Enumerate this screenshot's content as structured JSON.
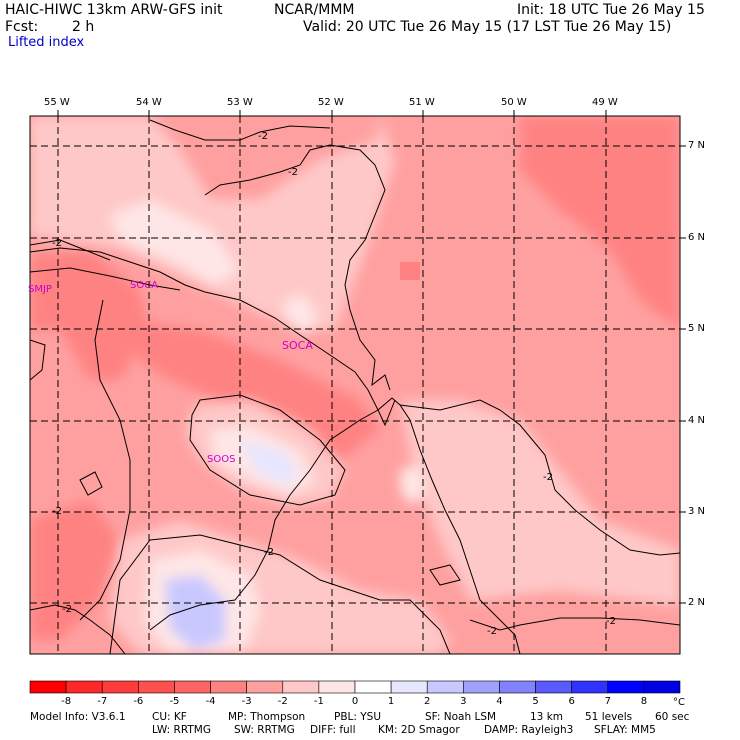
{
  "header": {
    "title_left": "HAIC-HIWC 13km ARW-GFS init",
    "title_center": "NCAR/MMM",
    "init": "Init: 18 UTC Tue 26 May 15",
    "fcst_label": "Fcst:",
    "fcst_value": "2 h",
    "valid": "Valid: 20 UTC Tue 26 May 15 (17 LST Tue 26 May 15)",
    "field_name": "Lifted index"
  },
  "map": {
    "lon_labels": [
      "55 W",
      "54 W",
      "53 W",
      "52 W",
      "51 W",
      "50 W",
      "49 W"
    ],
    "lat_labels": [
      "7 N",
      "6 N",
      "5 N",
      "4 N",
      "3 N",
      "2 N"
    ],
    "stations": [
      "SMJP",
      "SOCA",
      "SOCA",
      "SOOS"
    ],
    "contour_labels": [
      "-2",
      "-2",
      "-2",
      "-2",
      "-2",
      "-2",
      "-2",
      "-2",
      "-2"
    ]
  },
  "colorbar": {
    "levels": [
      "-8",
      "-7",
      "-6",
      "-5",
      "-4",
      "-3",
      "-2",
      "-1",
      "0",
      "1",
      "2",
      "3",
      "4",
      "5",
      "6",
      "7",
      "8"
    ],
    "unit": "°C",
    "colors": [
      "#ff0000",
      "#ff2828",
      "#ff3c3c",
      "#ff5050",
      "#ff6464",
      "#ff8282",
      "#ffa0a0",
      "#ffc8c8",
      "#ffe6e6",
      "#ffffff",
      "#e6e6ff",
      "#c8c8ff",
      "#a0a0ff",
      "#8282ff",
      "#5a5aff",
      "#3232ff",
      "#0000ff",
      "#0000e6"
    ]
  },
  "footer": {
    "line1": {
      "model": "Model Info: V3.6.1",
      "cu": "CU: KF",
      "mp": "MP: Thompson",
      "pbl": "PBL: YSU",
      "sf": "SF: Noah LSM",
      "res": "13 km",
      "levels": "51 levels",
      "dt": "60 sec"
    },
    "line2": {
      "lw": "LW: RRTMG",
      "sw": "SW: RRTMG",
      "diff": "DIFF: full",
      "km": "KM: 2D Smagor",
      "damp": "DAMP: Rayleigh3",
      "sflay": "SFLAY: MM5"
    }
  }
}
